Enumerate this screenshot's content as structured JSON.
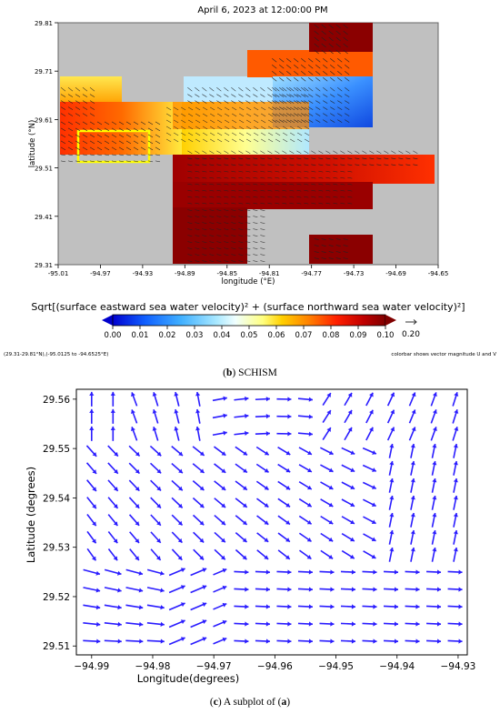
{
  "top_panel": {
    "title": "April 6, 2023 at 12:00:00 PM",
    "xlabel": "longitude (°E)",
    "ylabel": "latitude (°N)",
    "x_ticks": [
      "-95.01",
      "-94.97",
      "-94.93",
      "-94.89",
      "-94.85",
      "-94.81",
      "-94.77",
      "-94.73",
      "-94.69",
      "-94.65"
    ],
    "y_ticks": [
      "29.81",
      "29.71",
      "29.61",
      "29.51",
      "29.41",
      "29.31"
    ],
    "colorbar_title": "Sqrt[(surface eastward sea water velocity)² + (surface northward sea water velocity)²]",
    "colorbar_ticks": [
      "0.00",
      "0.01",
      "0.02",
      "0.03",
      "0.04",
      "0.05",
      "0.06",
      "0.07",
      "0.08",
      "0.09",
      "0.10"
    ],
    "vector_ref": "0.20",
    "left_note": "(29.31-29.81°N),(-95.0125 to -94.6525°E)",
    "right_note": "colorbar shows vector magnitude U and V",
    "caption_letter": "b",
    "caption_text": "SCHISM",
    "colors": {
      "land": "#c0c0c0",
      "box": "#ffff00",
      "dark_red": "#8b0000"
    }
  },
  "chart_data": [
    {
      "type": "heatmap",
      "title": "April 6, 2023 at 12:00:00 PM",
      "xlabel": "longitude (°E)",
      "ylabel": "latitude (°N)",
      "xlim": [
        -95.01,
        -94.65
      ],
      "ylim": [
        29.31,
        29.81
      ],
      "colorbar_range": [
        0.0,
        0.1
      ],
      "regions": [
        {
          "lon": [
            -95.01,
            -94.97
          ],
          "lat": [
            29.61,
            29.68
          ],
          "value": 0.06
        },
        {
          "lon": [
            -95.01,
            -94.91
          ],
          "lat": [
            29.51,
            29.61
          ],
          "value": 0.085
        },
        {
          "lon": [
            -94.91,
            -94.77
          ],
          "lat": [
            29.55,
            29.64
          ],
          "value": 0.08
        },
        {
          "lon": [
            -94.89,
            -94.77
          ],
          "lat": [
            29.64,
            29.68
          ],
          "value": 0.05
        },
        {
          "lon": [
            -94.81,
            -94.73
          ],
          "lat": [
            29.6,
            29.68
          ],
          "value": 0.015
        },
        {
          "lon": [
            -94.81,
            -94.73
          ],
          "lat": [
            29.68,
            29.74
          ],
          "value": 0.085
        },
        {
          "lon": [
            -94.77,
            -94.73
          ],
          "lat": [
            29.74,
            29.81
          ],
          "value": 0.1
        },
        {
          "lon": [
            -94.89,
            -94.67
          ],
          "lat": [
            29.51,
            29.55
          ],
          "value": 0.095
        },
        {
          "lon": [
            -94.89,
            -94.73
          ],
          "lat": [
            29.43,
            29.51
          ],
          "value": 0.1
        },
        {
          "lon": [
            -94.89,
            -94.81
          ],
          "lat": [
            29.31,
            29.43
          ],
          "value": 0.1
        },
        {
          "lon": [
            -94.77,
            -94.73
          ],
          "lat": [
            29.31,
            29.37
          ],
          "value": 0.1
        }
      ],
      "highlight_box": {
        "lon": [
          -94.99,
          -94.94
        ],
        "lat": [
          29.525,
          29.565
        ]
      }
    },
    {
      "type": "scatter",
      "subtype": "quiver",
      "xlabel": "Longitude(degrees)",
      "ylabel": "Latitude (degrees)",
      "xlim": [
        -94.9925,
        -94.9285
      ],
      "ylim": [
        29.5082,
        29.562
      ],
      "x_ticks": [
        -94.99,
        -94.98,
        -94.97,
        -94.96,
        -94.95,
        -94.94,
        -94.93
      ],
      "y_ticks": [
        29.56,
        29.55,
        29.54,
        29.53,
        29.52,
        29.51
      ],
      "arrow_color": "#2a1cff",
      "grid_lon": [
        -94.99,
        -94.9865,
        -94.983,
        -94.9795,
        -94.976,
        -94.9725,
        -94.969,
        -94.9655,
        -94.962,
        -94.9585,
        -94.955,
        -94.9515,
        -94.948,
        -94.9445,
        -94.941,
        -94.9375,
        -94.934,
        -94.9305
      ],
      "grid_lat": [
        29.56,
        29.5565,
        29.553,
        29.5495,
        29.546,
        29.5425,
        29.539,
        29.5355,
        29.532,
        29.5285,
        29.525,
        29.5215,
        29.518,
        29.5145,
        29.511
      ]
    }
  ],
  "bottom_panel": {
    "xlabel": "Longitude(degrees)",
    "ylabel": "Latitude (degrees)",
    "x_tick_labels": [
      "−94.99",
      "−94.98",
      "−94.97",
      "−94.96",
      "−94.95",
      "−94.94",
      "−94.93"
    ],
    "y_tick_labels": [
      "29.56",
      "29.55",
      "29.54",
      "29.53",
      "29.52",
      "29.51"
    ],
    "caption_letter": "c",
    "caption_text": "A subplot of (",
    "caption_ref": "a",
    "caption_end": ")"
  }
}
